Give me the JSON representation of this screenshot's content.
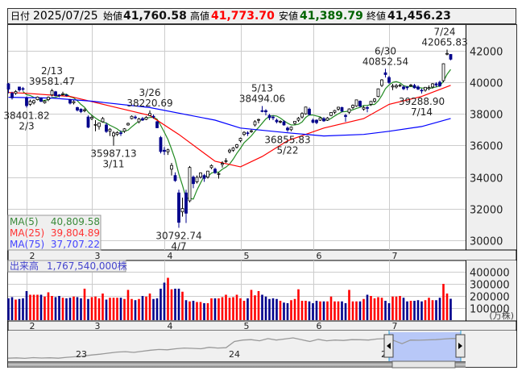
{
  "header": {
    "date_label": "日付",
    "date": "2025/07/25",
    "open_label": "始値",
    "open": "41,760.58",
    "high_label": "高値",
    "high": "41,773.70",
    "low_label": "安値",
    "low": "41,389.79",
    "close_label": "終値",
    "close": "41,456.23"
  },
  "legend": {
    "ma5_label": "MA(5)",
    "ma5_value": "40,809.58",
    "ma25_label": "MA(25)",
    "ma25_value": "39,804.89",
    "ma75_label": "MA(75)",
    "ma75_value": "37,707.22"
  },
  "volume_panel": {
    "label": "出来高",
    "value": "1,767,540,000株",
    "unit": "(万株)"
  },
  "colors": {
    "up_candle": "#ffffff",
    "down_candle": "#00008b",
    "volume_up": "#ff0000",
    "volume_down": "#00008b",
    "ma5": "#228b22",
    "ma25": "#ff0000",
    "ma75": "#0000ff",
    "navigator_selection": "#b8c8f8"
  },
  "chart_data": {
    "type": "candlestick",
    "title": "",
    "ylim": [
      29500,
      43000
    ],
    "y_ticks": [
      "42000",
      "40000",
      "38000",
      "36000",
      "34000",
      "32000",
      "30000"
    ],
    "x_month_ticks": [
      {
        "date": "2/3",
        "label": "2"
      },
      {
        "date": "3/3",
        "label": "3"
      },
      {
        "date": "4/1",
        "label": "4"
      },
      {
        "date": "5/1",
        "label": "5"
      },
      {
        "date": "6/2",
        "label": "6"
      },
      {
        "date": "7/1",
        "label": "7"
      }
    ],
    "grid": true,
    "columns": [
      "date",
      "open",
      "high",
      "low",
      "close",
      "volume"
    ],
    "rows": [
      [
        "1/27",
        39900,
        39950,
        39300,
        39565,
        180000
      ],
      [
        "1/28",
        39300,
        39400,
        38900,
        39016,
        190000
      ],
      [
        "1/29",
        39300,
        39500,
        39200,
        39414,
        170000
      ],
      [
        "1/30",
        39700,
        39720,
        39400,
        39513,
        175000
      ],
      [
        "1/31",
        39600,
        39700,
        39450,
        39572,
        180000
      ],
      [
        "2/3",
        39000,
        39100,
        38401.82,
        38520,
        240000
      ],
      [
        "2/4",
        38600,
        38900,
        38500,
        38798,
        210000
      ],
      [
        "2/5",
        38700,
        38900,
        38600,
        38831,
        210000
      ],
      [
        "2/6",
        38900,
        39100,
        38850,
        39066,
        210000
      ],
      [
        "2/7",
        39000,
        39050,
        38750,
        38787,
        210000
      ],
      [
        "2/10",
        38700,
        38850,
        38650,
        38801,
        195000
      ],
      [
        "2/12",
        38900,
        39100,
        38800,
        39043,
        230000
      ],
      [
        "2/13",
        39200,
        39581.47,
        39100,
        39461,
        200000
      ],
      [
        "2/14",
        39400,
        39450,
        39100,
        39149,
        190000
      ],
      [
        "2/17",
        39200,
        39250,
        39050,
        39174,
        200000
      ],
      [
        "2/18",
        39250,
        39400,
        39150,
        39270,
        185000
      ],
      [
        "2/19",
        39200,
        39250,
        39100,
        39164,
        180000
      ],
      [
        "2/20",
        38900,
        38950,
        38600,
        38678,
        185000
      ],
      [
        "2/21",
        38700,
        38850,
        38600,
        38776,
        195000
      ],
      [
        "2/25",
        38400,
        38450,
        38150,
        38237,
        190000
      ],
      [
        "2/26",
        38300,
        38350,
        38050,
        38142,
        180000
      ],
      [
        "2/27",
        38200,
        38350,
        38100,
        38256,
        260000
      ],
      [
        "2/28",
        37800,
        37900,
        37100,
        37155,
        175000
      ],
      [
        "3/3",
        37700,
        37900,
        37600,
        37785,
        190000
      ],
      [
        "3/4",
        37300,
        37600,
        36900,
        37331,
        195000
      ],
      [
        "3/5",
        37200,
        37450,
        37000,
        37418,
        180000
      ],
      [
        "3/6",
        37500,
        37800,
        37450,
        37704,
        220000
      ],
      [
        "3/7",
        37300,
        37450,
        36800,
        36887,
        170000
      ],
      [
        "3/10",
        36900,
        37100,
        36600,
        37028,
        185000
      ],
      [
        "3/11",
        36600,
        36900,
        35987.13,
        36793,
        185000
      ],
      [
        "3/12",
        36700,
        36900,
        36600,
        36819,
        185000
      ],
      [
        "3/13",
        36800,
        36950,
        36600,
        36790,
        185000
      ],
      [
        "3/14",
        36900,
        37100,
        36800,
        37053,
        175000
      ],
      [
        "3/17",
        37300,
        37450,
        37250,
        37396,
        250000
      ],
      [
        "3/18",
        37700,
        37900,
        37650,
        37845,
        175000
      ],
      [
        "3/19",
        37800,
        37900,
        37650,
        37751,
        165000
      ],
      [
        "3/21",
        37500,
        37750,
        37400,
        37677,
        175000
      ],
      [
        "3/24",
        37700,
        37800,
        37550,
        37608,
        200000
      ],
      [
        "3/25",
        37650,
        37850,
        37600,
        37780,
        195000
      ],
      [
        "3/26",
        37900,
        38220.69,
        37850,
        38027,
        220000
      ],
      [
        "3/27",
        37850,
        37950,
        37700,
        37799,
        175000
      ],
      [
        "3/28",
        37500,
        37550,
        37100,
        37120,
        180000
      ],
      [
        "3/31",
        36500,
        36600,
        35500,
        35617,
        260000
      ],
      [
        "4/1",
        35700,
        35900,
        35400,
        35624,
        310000
      ],
      [
        "4/2",
        35600,
        35800,
        35400,
        35725,
        350000
      ],
      [
        "4/3",
        34500,
        34900,
        34100,
        34735,
        255000
      ],
      [
        "4/4",
        34100,
        34300,
        33700,
        33780,
        260000
      ],
      [
        "4/7",
        33000,
        33200,
        30792.74,
        31136,
        260000
      ],
      [
        "4/8",
        31800,
        32700,
        31500,
        32013,
        235000
      ],
      [
        "4/9",
        33000,
        33200,
        31100,
        31714,
        165000
      ],
      [
        "4/10",
        32500,
        34700,
        32400,
        34609,
        155000
      ],
      [
        "4/11",
        34000,
        34100,
        33300,
        33585,
        160000
      ],
      [
        "4/14",
        33700,
        34100,
        33600,
        33982,
        150000
      ],
      [
        "4/15",
        34000,
        34300,
        33900,
        34267,
        150000
      ],
      [
        "4/16",
        34100,
        34200,
        33700,
        33920,
        140000
      ],
      [
        "4/17",
        34000,
        34400,
        33900,
        34377,
        140000
      ],
      [
        "4/18",
        34600,
        34800,
        34500,
        34730,
        180000
      ],
      [
        "4/21",
        34500,
        34600,
        34200,
        34279,
        180000
      ],
      [
        "4/22",
        34200,
        34300,
        33900,
        34220,
        180000
      ],
      [
        "4/23",
        34800,
        35000,
        34600,
        34868,
        190000
      ],
      [
        "4/24",
        35000,
        35200,
        34900,
        35039,
        210000
      ],
      [
        "4/25",
        35600,
        35800,
        35500,
        35705,
        185000
      ],
      [
        "4/28",
        35700,
        35900,
        35600,
        35839,
        190000
      ],
      [
        "4/30",
        35900,
        36100,
        35800,
        36045,
        210000
      ],
      [
        "5/1",
        36300,
        36500,
        36200,
        36452,
        180000
      ],
      [
        "5/2",
        36700,
        36900,
        36600,
        36831,
        160000
      ],
      [
        "5/7",
        36800,
        36900,
        36600,
        36780,
        180000
      ],
      [
        "5/8",
        36900,
        37000,
        36800,
        36928,
        250000
      ],
      [
        "5/9",
        37300,
        37600,
        37200,
        37503,
        205000
      ],
      [
        "5/12",
        37600,
        37700,
        37400,
        37644,
        240000
      ],
      [
        "5/13",
        38200,
        38494.06,
        38100,
        38183,
        210000
      ],
      [
        "5/14",
        38200,
        38300,
        37900,
        38128,
        195000
      ],
      [
        "5/15",
        37900,
        38000,
        37600,
        37755,
        175000
      ],
      [
        "5/16",
        37800,
        37900,
        37600,
        37753,
        180000
      ],
      [
        "5/19",
        37600,
        37700,
        37400,
        37498,
        175000
      ],
      [
        "5/20",
        37500,
        37600,
        37400,
        37529,
        160000
      ],
      [
        "5/21",
        37500,
        37600,
        37250,
        37299,
        145000
      ],
      [
        "5/22",
        37100,
        37200,
        36855.83,
        36985,
        140000
      ],
      [
        "5/23",
        37000,
        37200,
        36900,
        37160,
        165000
      ],
      [
        "5/26",
        37400,
        37550,
        37300,
        37531,
        175000
      ],
      [
        "5/27",
        37600,
        37800,
        37500,
        37724,
        255000
      ],
      [
        "5/28",
        37800,
        38100,
        37700,
        38021,
        160000
      ],
      [
        "5/29",
        38000,
        38450,
        37950,
        38432,
        160000
      ],
      [
        "5/30",
        38300,
        38400,
        37900,
        37965,
        155000
      ],
      [
        "6/2",
        37600,
        37700,
        37400,
        37470,
        140000
      ],
      [
        "6/3",
        37600,
        37650,
        37350,
        37446,
        160000
      ],
      [
        "6/4",
        37600,
        37800,
        37550,
        37747,
        155000
      ],
      [
        "6/5",
        37700,
        37800,
        37500,
        37554,
        155000
      ],
      [
        "6/6",
        37600,
        37800,
        37550,
        37741,
        155000
      ],
      [
        "6/9",
        37900,
        38100,
        37850,
        38088,
        195000
      ],
      [
        "6/10",
        38100,
        38250,
        38000,
        38211,
        155000
      ],
      [
        "6/11",
        38300,
        38450,
        38200,
        38421,
        155000
      ],
      [
        "6/12",
        38400,
        38450,
        38100,
        38173,
        155000
      ],
      [
        "6/13",
        37900,
        38000,
        37500,
        37834,
        140000
      ],
      [
        "6/16",
        38100,
        38350,
        38000,
        38311,
        250000
      ],
      [
        "6/17",
        38400,
        38600,
        38300,
        38536,
        155000
      ],
      [
        "6/18",
        38500,
        38900,
        38450,
        38885,
        155000
      ],
      [
        "6/19",
        38800,
        38850,
        38400,
        38488,
        155000
      ],
      [
        "6/20",
        38300,
        38500,
        38200,
        38403,
        175000
      ],
      [
        "6/23",
        38400,
        38500,
        38100,
        38354,
        210000
      ],
      [
        "6/24",
        38600,
        38800,
        38500,
        38790,
        200000
      ],
      [
        "6/25",
        38800,
        39000,
        38700,
        38942,
        180000
      ],
      [
        "6/26",
        39100,
        39600,
        39050,
        39584,
        190000
      ],
      [
        "6/27",
        39800,
        40200,
        39700,
        40150,
        185000
      ],
      [
        "6/30",
        40600,
        40852.54,
        40300,
        40487,
        160000
      ],
      [
        "7/1",
        40300,
        40400,
        39900,
        39986,
        140000
      ],
      [
        "7/2",
        39700,
        39900,
        39500,
        39762,
        195000
      ],
      [
        "7/3",
        39700,
        39900,
        39600,
        39785,
        195000
      ],
      [
        "7/4",
        39800,
        39900,
        39700,
        39810,
        200000
      ],
      [
        "7/7",
        39700,
        39800,
        39500,
        39587,
        185000
      ],
      [
        "7/8",
        39700,
        39750,
        39500,
        39688,
        155000
      ],
      [
        "7/9",
        39800,
        39900,
        39700,
        39821,
        160000
      ],
      [
        "7/10",
        39800,
        39900,
        39600,
        39646,
        160000
      ],
      [
        "7/11",
        39700,
        39800,
        39500,
        39569,
        165000
      ],
      [
        "7/14",
        39500,
        39600,
        39288.9,
        39459,
        155000
      ],
      [
        "7/15",
        39500,
        39700,
        39400,
        39678,
        165000
      ],
      [
        "7/16",
        39600,
        39800,
        39500,
        39663,
        185000
      ],
      [
        "7/17",
        39700,
        39950,
        39600,
        39901,
        165000
      ],
      [
        "7/18",
        39900,
        40000,
        39700,
        39819,
        165000
      ],
      [
        "7/22",
        40000,
        40100,
        39700,
        39774,
        185000
      ],
      [
        "7/23",
        40100,
        41200,
        40000,
        41171,
        300000
      ],
      [
        "7/24",
        41800,
        42065.83,
        41700,
        41826,
        220000
      ],
      [
        "7/25",
        41760.58,
        41773.7,
        41389.79,
        41456.23,
        176754
      ]
    ],
    "ma25": [
      [
        "1/27",
        39350
      ],
      [
        "2/3",
        39300
      ],
      [
        "2/20",
        39100
      ],
      [
        "3/10",
        38500
      ],
      [
        "3/26",
        37900
      ],
      [
        "4/7",
        36700
      ],
      [
        "4/21",
        35000
      ],
      [
        "5/1",
        34650
      ],
      [
        "5/13",
        35300
      ],
      [
        "5/22",
        36300
      ],
      [
        "6/5",
        37100
      ],
      [
        "6/20",
        37700
      ],
      [
        "7/1",
        38600
      ],
      [
        "7/14",
        39100
      ],
      [
        "7/25",
        39804.89
      ]
    ],
    "ma75": [
      [
        "1/27",
        39050
      ],
      [
        "2/13",
        39000
      ],
      [
        "3/3",
        38800
      ],
      [
        "3/26",
        38400
      ],
      [
        "4/21",
        37600
      ],
      [
        "5/1",
        37100
      ],
      [
        "5/22",
        36800
      ],
      [
        "6/5",
        36600
      ],
      [
        "6/20",
        36700
      ],
      [
        "7/1",
        36900
      ],
      [
        "7/14",
        37200
      ],
      [
        "7/25",
        37707.22
      ]
    ],
    "annotations": [
      {
        "date": "2/3",
        "value": "38401.82",
        "type": "low"
      },
      {
        "date": "2/13",
        "value": "39581.47",
        "type": "high"
      },
      {
        "date": "3/11",
        "value": "35987.13",
        "type": "low"
      },
      {
        "date": "3/26",
        "value": "38220.69",
        "type": "high"
      },
      {
        "date": "4/7",
        "value": "30792.74",
        "type": "low"
      },
      {
        "date": "5/13",
        "value": "38494.06",
        "type": "high"
      },
      {
        "date": "5/22",
        "value": "36855.83",
        "type": "low"
      },
      {
        "date": "6/30",
        "value": "40852.54",
        "type": "high"
      },
      {
        "date": "7/14",
        "value": "39288.90",
        "type": "low"
      },
      {
        "date": "7/24",
        "value": "42065.83",
        "type": "high"
      }
    ],
    "volume_ylim": [
      0,
      420000
    ],
    "volume_ticks": [
      "400000",
      "300000",
      "200000",
      "100000"
    ]
  },
  "navigator": {
    "year_labels": [
      "23",
      "24",
      "25"
    ],
    "values": [
      27000,
      27200,
      26900,
      27400,
      27100,
      27300,
      27000,
      27600,
      28000,
      28500,
      29200,
      29800,
      30500,
      31200,
      31500,
      31000,
      31800,
      32500,
      33000,
      32800,
      33500,
      34000,
      33800,
      33500,
      34500,
      34000,
      34200,
      38500,
      39500,
      39800,
      39000,
      40500,
      39500,
      40200,
      41000,
      39800,
      38500,
      40000,
      39000,
      39500,
      39200,
      39800,
      39700,
      39500,
      40200,
      40500,
      39200,
      37000,
      39500,
      39400,
      39600,
      39800,
      40200,
      40600,
      40400
    ],
    "selection_start_month": "7"
  }
}
